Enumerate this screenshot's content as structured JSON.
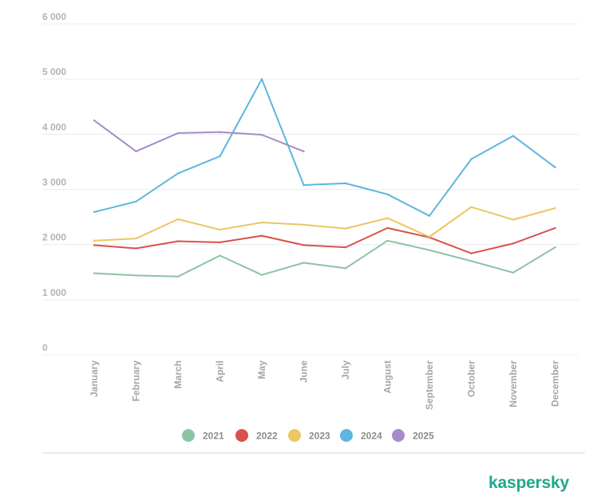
{
  "chart_data": {
    "type": "line",
    "categories": [
      "January",
      "February",
      "March",
      "April",
      "May",
      "June",
      "July",
      "August",
      "September",
      "October",
      "November",
      "December"
    ],
    "series": [
      {
        "name": "2021",
        "color": "#8cc4a3",
        "values": [
          1480,
          1440,
          1420,
          1800,
          1450,
          1670,
          1570,
          2070,
          1900,
          1700,
          1490,
          1950
        ]
      },
      {
        "name": "2022",
        "color": "#d9514c",
        "values": [
          1990,
          1930,
          2060,
          2040,
          2160,
          1990,
          1950,
          2300,
          2130,
          1840,
          2020,
          2300
        ]
      },
      {
        "name": "2023",
        "color": "#ebc662",
        "values": [
          2070,
          2110,
          2460,
          2270,
          2400,
          2360,
          2290,
          2480,
          2140,
          2680,
          2450,
          2660
        ]
      },
      {
        "name": "2024",
        "color": "#5db6dd",
        "values": [
          2590,
          2780,
          3290,
          3600,
          5000,
          3080,
          3110,
          2910,
          2520,
          3550,
          3970,
          3400
        ]
      },
      {
        "name": "2025",
        "color": "#a58cc7",
        "values": [
          4250,
          3690,
          4020,
          4040,
          3990,
          3690,
          null,
          null,
          null,
          null,
          null,
          null
        ]
      }
    ],
    "ylim": [
      0,
      6000
    ],
    "yticks": [
      0,
      1000,
      2000,
      3000,
      4000,
      5000,
      6000
    ],
    "ytick_labels": [
      "0",
      "1 000",
      "2 000",
      "3 000",
      "4 000",
      "5 000",
      "6 000"
    ],
    "grid": true,
    "legend_position": "bottom",
    "title": "",
    "xlabel": "",
    "ylabel": ""
  },
  "brand": {
    "logo_text": "kaspersky",
    "color": "#1fa88a"
  }
}
